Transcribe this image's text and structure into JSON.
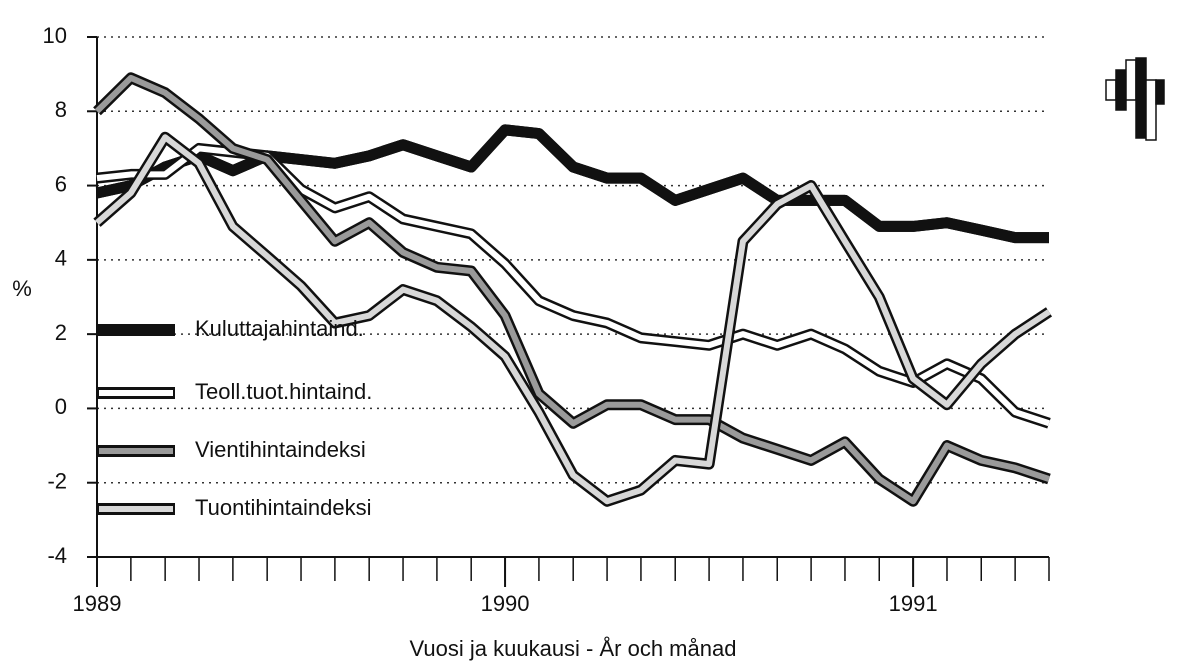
{
  "chart_data": {
    "type": "line",
    "xlabel": "Vuosi ja kuukausi - År och månad",
    "ylabel": "%",
    "x": [
      1989,
      1989.083,
      1989.167,
      1989.25,
      1989.333,
      1989.417,
      1989.5,
      1989.583,
      1989.667,
      1989.75,
      1989.833,
      1989.917,
      1990,
      1990.083,
      1990.167,
      1990.25,
      1990.333,
      1990.417,
      1990.5,
      1990.583,
      1990.667,
      1990.75,
      1990.833,
      1990.917,
      1991,
      1991.083,
      1991.167,
      1991.25,
      1991.333
    ],
    "xlim": [
      1989,
      1991.333
    ],
    "xticks": [
      1989,
      1990,
      1991
    ],
    "ylim": [
      -4,
      10
    ],
    "yticks": [
      -4,
      -2,
      0,
      2,
      4,
      6,
      8,
      10
    ],
    "grid": true,
    "legend": "lower left",
    "series": [
      {
        "name": "Kuluttajahintaind.",
        "color": "#111111",
        "values": [
          5.8,
          6.0,
          6.5,
          6.8,
          6.4,
          6.8,
          6.7,
          6.6,
          6.8,
          7.1,
          6.8,
          6.5,
          7.5,
          7.4,
          6.5,
          6.2,
          6.2,
          5.6,
          5.9,
          6.2,
          5.6,
          5.6,
          5.6,
          4.9,
          4.9,
          5.0,
          4.8,
          4.6,
          4.6
        ]
      },
      {
        "name": "Teoll.tuot.hintaind.",
        "color": "#ffffff",
        "values": [
          6.2,
          6.3,
          6.3,
          7.0,
          6.9,
          6.8,
          5.9,
          5.4,
          5.7,
          5.1,
          4.9,
          4.7,
          3.9,
          2.9,
          2.5,
          2.3,
          1.9,
          1.8,
          1.7,
          2.0,
          1.7,
          2.0,
          1.6,
          1.0,
          0.7,
          1.2,
          0.8,
          -0.1,
          -0.4
        ]
      },
      {
        "name": "Vientihintaindeksi",
        "color": "#9a9a9a",
        "values": [
          8.0,
          8.9,
          8.5,
          7.8,
          7.0,
          6.7,
          5.6,
          4.5,
          5.0,
          4.2,
          3.8,
          3.7,
          2.5,
          0.4,
          -0.4,
          0.1,
          0.1,
          -0.3,
          -0.3,
          -0.8,
          -1.1,
          -1.4,
          -0.9,
          -1.9,
          -2.5,
          -1.0,
          -1.4,
          -1.6,
          -1.9
        ]
      },
      {
        "name": "Tuontihintaindeksi",
        "color": "#d8d8d8",
        "values": [
          5.0,
          5.8,
          7.3,
          6.6,
          4.9,
          4.1,
          3.3,
          2.3,
          2.5,
          3.2,
          2.9,
          2.2,
          1.4,
          -0.1,
          -1.8,
          -2.5,
          -2.2,
          -1.4,
          -1.5,
          4.5,
          5.5,
          6.0,
          4.5,
          3.0,
          0.8,
          0.1,
          1.2,
          2.0,
          2.6
        ]
      }
    ]
  }
}
